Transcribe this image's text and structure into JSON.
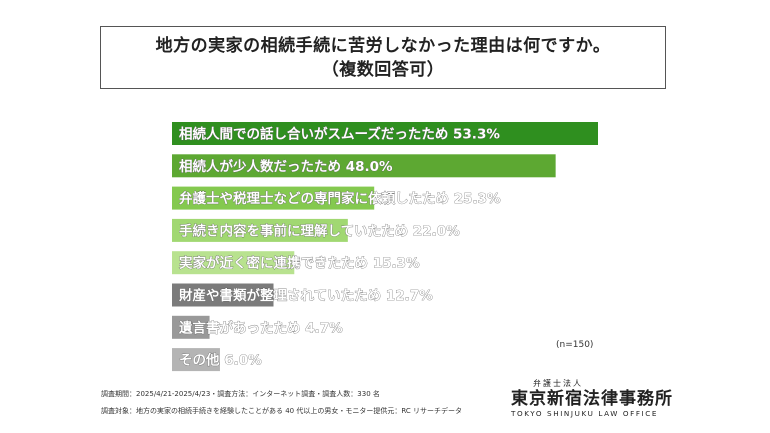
{
  "header": {
    "title_line1": "地方の実家の相続手続に苦労しなかった理由は何ですか。",
    "title_line2": "（複数回答可）"
  },
  "chart_data": {
    "type": "bar",
    "orientation": "horizontal",
    "categories": [
      "相続人間での話し合いがスムーズだったため",
      "相続人が少人数だったため",
      "弁護士や税理士などの専門家に依頼したため",
      "手続き内容を事前に理解していたため",
      "実家が近く密に連携できたため",
      "財産や書類が整理されていたため",
      "遺言書があったため",
      "その他"
    ],
    "values": [
      53.3,
      48.0,
      25.3,
      22.0,
      15.3,
      12.7,
      4.7,
      6.0
    ],
    "value_labels": [
      "53.3%",
      "48.0%",
      "25.3%",
      "22.0%",
      "15.3%",
      "12.7%",
      "4.7%",
      "6.0%"
    ],
    "colors": [
      "#2f8f1f",
      "#5da832",
      "#84c94f",
      "#a1d872",
      "#b8e28f",
      "#7b7b7b",
      "#999999",
      "#b4b4b4"
    ],
    "xlim": [
      0,
      53.3
    ],
    "grid": false,
    "legend": "none",
    "sample_size": "(n=150)"
  },
  "footer": {
    "period": "調査期間：2025/4/21-2025/4/23・調査方法：インターネット調査・調査人数：330 名",
    "target": "調査対象：地方の実家の相続手続きを経験したことがある 40 代以上の男女・モニター提供元：RC リサーチデータ"
  },
  "logo": {
    "subtitle": "弁護士法人",
    "name": "東京新宿法律事務所",
    "english": "TOKYO SHINJUKU LAW OFFICE"
  }
}
